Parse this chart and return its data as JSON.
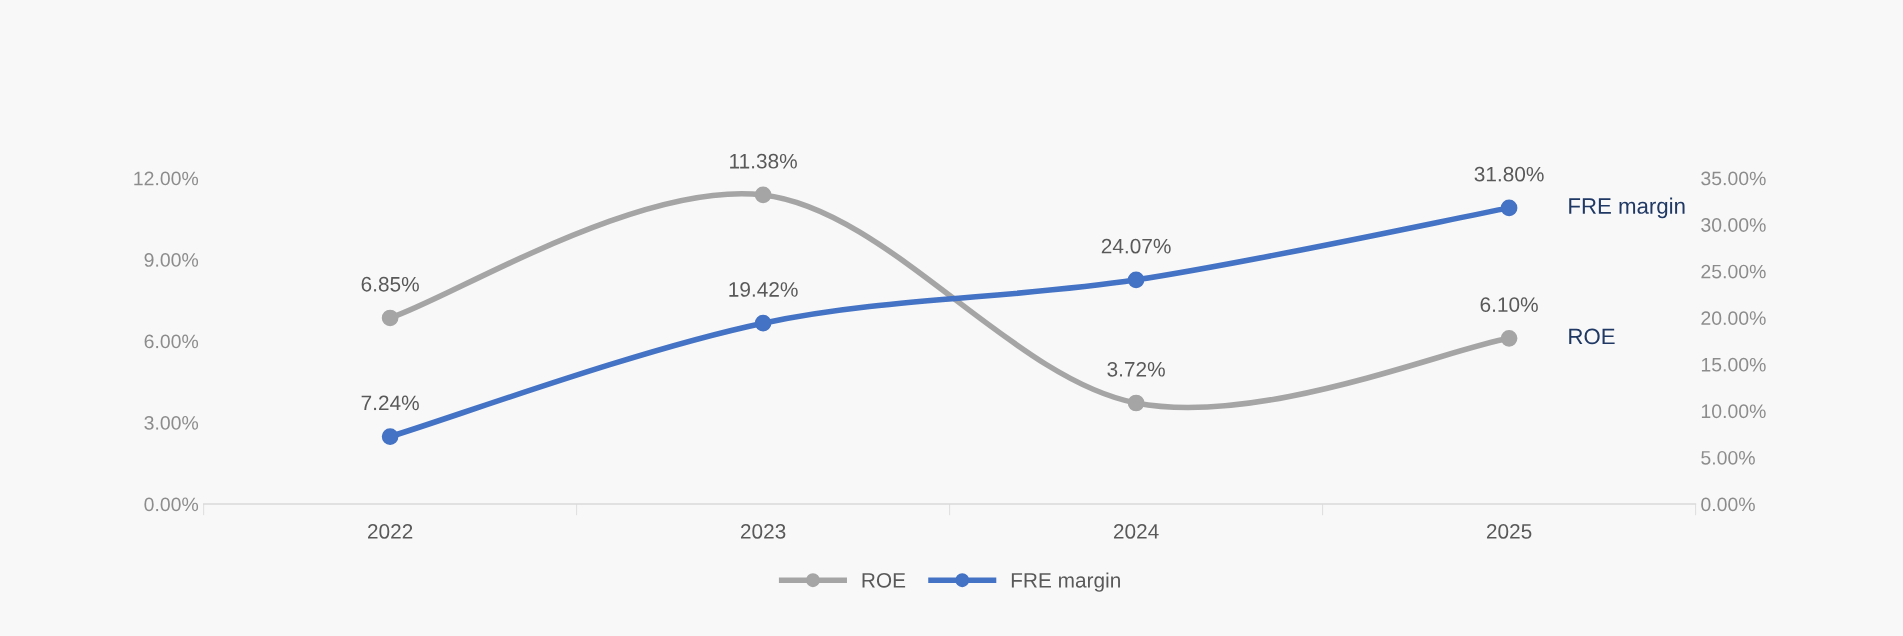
{
  "chart_data": {
    "type": "line",
    "categories": [
      "2022",
      "2023",
      "2024",
      "2025"
    ],
    "series": [
      {
        "name": "ROE",
        "color": "#a5a5a5",
        "values": [
          6.85,
          11.38,
          3.72,
          6.1
        ],
        "value_labels": [
          "6.85%",
          "11.38%",
          "3.72%",
          "6.10%"
        ]
      },
      {
        "name": "FRE margin",
        "color": "#4472c4",
        "values": [
          7.24,
          19.42,
          24.07,
          31.8
        ],
        "value_labels": [
          "7.24%",
          "19.42%",
          "24.07%",
          "31.80%"
        ],
        "axis": "y2"
      }
    ],
    "ylim": [
      0,
      12
    ],
    "yticks": [
      {
        "value": 0,
        "label": "0.00%"
      },
      {
        "value": 3,
        "label": "3.00%"
      },
      {
        "value": 6,
        "label": "6.00%"
      },
      {
        "value": 9,
        "label": "9.00%"
      },
      {
        "value": 12,
        "label": "12.00%"
      }
    ],
    "y2lim": [
      0,
      35
    ],
    "y2ticks": [
      {
        "value": 0,
        "label": "0.00%"
      },
      {
        "value": 5,
        "label": "5.00%"
      },
      {
        "value": 10,
        "label": "10.00%"
      },
      {
        "value": 15,
        "label": "15.00%"
      },
      {
        "value": 20,
        "label": "20.00%"
      },
      {
        "value": 25,
        "label": "25.00%"
      },
      {
        "value": 30,
        "label": "30.00%"
      },
      {
        "value": 35,
        "label": "35.00%"
      }
    ],
    "marker": "circle",
    "line_style": "solid",
    "grid": false,
    "legend": "bottom"
  }
}
